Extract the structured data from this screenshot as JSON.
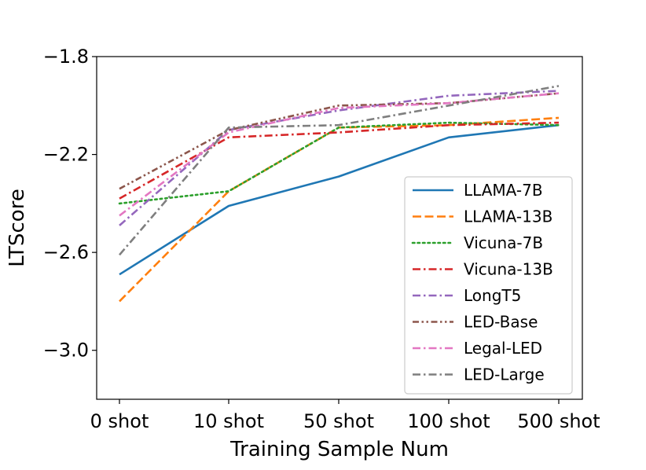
{
  "chart_data": {
    "type": "line",
    "title": "",
    "xlabel": "Training Sample Num",
    "ylabel": "LTScore",
    "categories": [
      "0 shot",
      "10 shot",
      "50 shot",
      "100 shot",
      "500 shot"
    ],
    "ylim": [
      -3.2,
      -1.8
    ],
    "yticks": [
      -1.8,
      -2.2,
      -2.6,
      -3.0
    ],
    "ytick_labels": [
      "−1.8",
      "−2.2",
      "−2.6",
      "−3.0"
    ],
    "legend_position": "lower-right",
    "series": [
      {
        "name": "LLAMA-7B",
        "values": [
          -2.69,
          -2.41,
          -2.29,
          -2.13,
          -2.08
        ],
        "color": "#1f77b4",
        "dash": "solid"
      },
      {
        "name": "LLAMA-13B",
        "values": [
          -2.8,
          -2.35,
          -2.09,
          -2.08,
          -2.05
        ],
        "color": "#ff7f0e",
        "dash": "dashed"
      },
      {
        "name": "Vicuna-7B",
        "values": [
          -2.4,
          -2.35,
          -2.09,
          -2.07,
          -2.08
        ],
        "color": "#2ca02c",
        "dash": "dotted"
      },
      {
        "name": "Vicuna-13B",
        "values": [
          -2.38,
          -2.13,
          -2.11,
          -2.08,
          -2.07
        ],
        "color": "#d62728",
        "dash": "dashdot"
      },
      {
        "name": "LongT5",
        "values": [
          -2.49,
          -2.1,
          -2.02,
          -1.96,
          -1.94
        ],
        "color": "#9467bd",
        "dash": "dashdot"
      },
      {
        "name": "LED-Base",
        "values": [
          -2.34,
          -2.1,
          -2.0,
          -1.99,
          -1.95
        ],
        "color": "#8c564b",
        "dash": "dashdotdot"
      },
      {
        "name": "Legal-LED",
        "values": [
          -2.45,
          -2.11,
          -2.01,
          -1.99,
          -1.95
        ],
        "color": "#e377c2",
        "dash": "dashdot"
      },
      {
        "name": "LED-Large",
        "values": [
          -2.61,
          -2.09,
          -2.08,
          -2.0,
          -1.92
        ],
        "color": "#7f7f7f",
        "dash": "dashdot"
      }
    ]
  }
}
